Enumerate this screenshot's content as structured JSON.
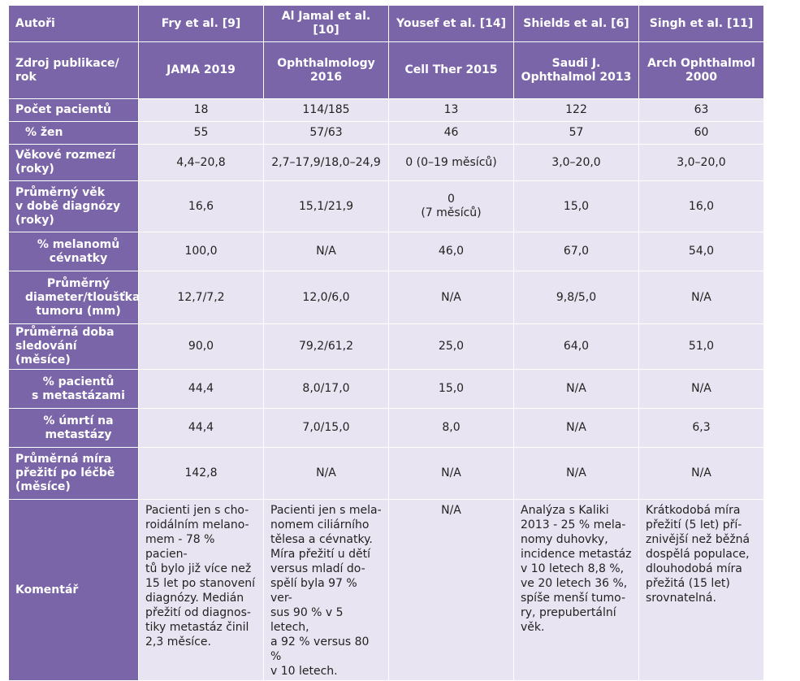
{
  "columns": {
    "label": "Autoři",
    "c1": "Fry et al. [9]",
    "c2": "Al Jamal et al. [10]",
    "c3": "Yousef et al. [14]",
    "c4": "Shields et al. [6]",
    "c5": "Singh et al. [11]"
  },
  "rows": [
    {
      "label": "Zdroj publikace/\nrok",
      "v": [
        "JAMA 2019",
        "Ophthalmology\n2016",
        "Cell Ther 2015",
        "Saudi J.\nOphthalmol 2013",
        "Arch Ophthalmol\n2000"
      ]
    },
    {
      "label": "Počet pacientů",
      "v": [
        "18",
        "114/185",
        "13",
        "122",
        "63"
      ]
    },
    {
      "label": "% žen",
      "v": [
        "55",
        "57/63",
        "46",
        "57",
        "60"
      ]
    },
    {
      "label": "Věkové rozmezí\n(roky)",
      "v": [
        "4,4–20,8",
        "2,7–17,9/18,0–24,9",
        "0 (0–19 měsíců)",
        "3,0–20,0",
        "3,0–20,0"
      ]
    },
    {
      "label": "Průměrný věk\nv době diagnózy\n(roky)",
      "v": [
        "16,6",
        "15,1/21,9",
        "0\n(7 měsíců)",
        "15,0",
        "16,0"
      ]
    },
    {
      "label": "% melanomů\ncévnatky",
      "v": [
        "100,0",
        "N/A",
        "46,0",
        "67,0",
        "54,0"
      ]
    },
    {
      "label": "Průměrný\ndiameter/tloušťka\ntumoru (mm)",
      "v": [
        "12,7/7,2",
        "12,0/6,0",
        "N/A",
        "9,8/5,0",
        "N/A"
      ]
    },
    {
      "label": "Průměrná doba\nsledování (měsíce)",
      "v": [
        "90,0",
        "79,2/61,2",
        "25,0",
        "64,0",
        "51,0"
      ]
    },
    {
      "label": "% pacientů\ns metastázami",
      "v": [
        "44,4",
        "8,0/17,0",
        "15,0",
        "N/A",
        "N/A"
      ]
    },
    {
      "label": "% úmrtí na\nmetastázy",
      "v": [
        "44,4",
        "7,0/15,0",
        "8,0",
        "N/A",
        "6,3"
      ]
    },
    {
      "label": "Průměrná míra\npřežití po léčbě\n(měsíce)",
      "v": [
        "142,8",
        "N/A",
        "N/A",
        "N/A",
        "N/A"
      ]
    }
  ],
  "comment": {
    "label": "Komentář",
    "c1": "Pacienti jen s cho-\nroidálním melano-\nmem - 78 % pacien-\ntů bylo již více než\n15 let po stanovení\ndiagnózy. Medián\npřežití od diagnos-\ntiky metastáz činil\n2,3 měsíce.",
    "c2": "Pacienti jen s mela-\nnomem ciliárního\ntělesa a cévnatky.\nMíra přežití u dětí\nversus mladí do-\nspělí byla 97 % ver-\nsus 90 % v 5 letech,\na 92 % versus 80 %\nv 10 letech.",
    "c3": "N/A",
    "c4": "Analýza s Kaliki\n2013 - 25 % mela-\nnomy duhovky,\nincidence metastáz\nv 10 letech 8,8 %,\nve 20 letech 36 %,\nspíše menší tumo-\nry, prepubertální\nvěk.",
    "c5": "Krátkodobá míra\npřežití (5 let) pří-\nznivější než běžná\ndospělá populace,\ndlouhodobá míra\npřežitá (15 let)\nsrovnatelná."
  },
  "colors": {
    "header_bg": "#7b65a9",
    "cell_bg": "#e9e4f1",
    "header_text": "#ffffff"
  }
}
